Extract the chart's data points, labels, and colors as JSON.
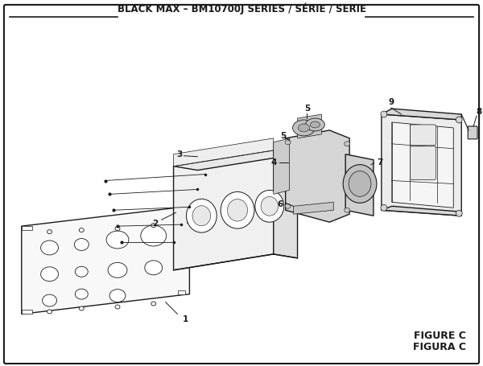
{
  "title": "BLACK MAX – BM10700J SERIES / SÉRIE / SERIE",
  "figure_label_1": "FIGURE C",
  "figure_label_2": "FIGURA C",
  "bg_color": "#ffffff",
  "line_color": "#1a1a1a",
  "title_fontsize": 8.5,
  "label_fontsize": 7.5,
  "figure_label_fontsize": 9
}
